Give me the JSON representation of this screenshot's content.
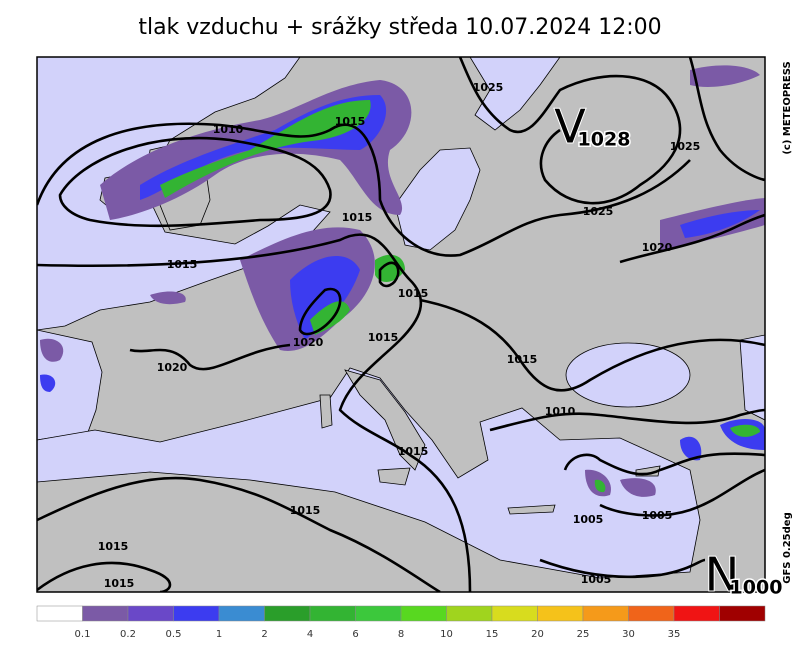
{
  "title": "tlak vzduchu + srážky  středa 10.07.2024 12:00",
  "credit": "(c) METEOPRESS",
  "model": "GFS  0.25deg",
  "isobar_labels": [
    "1025",
    "1015",
    "1010",
    "1025",
    "1025",
    "1015",
    "1020",
    "1015",
    "1015",
    "1015",
    "1020",
    "1020",
    "1015",
    "1010",
    "1015",
    "1005",
    "1005",
    "1015",
    "1015",
    "1015",
    "1005"
  ],
  "pressure_centers": [
    {
      "symbol": "V",
      "value": "1028"
    },
    {
      "symbol": "N",
      "value": "1000"
    }
  ],
  "colorbar": {
    "colors": [
      "#ffffff",
      "#7b5aa6",
      "#6a48c8",
      "#3c3cf0",
      "#3a8cd2",
      "#2a9e2a",
      "#33b433",
      "#3cc83c",
      "#58d820",
      "#a0d41e",
      "#d8dc1e",
      "#f5c21a",
      "#f59a1a",
      "#f0641a",
      "#f01414",
      "#a00000"
    ],
    "labels": [
      "0.1",
      "0.2",
      "0.5",
      "1",
      "2",
      "4",
      "6",
      "8",
      "10",
      "15",
      "20",
      "25",
      "30",
      "35"
    ]
  }
}
